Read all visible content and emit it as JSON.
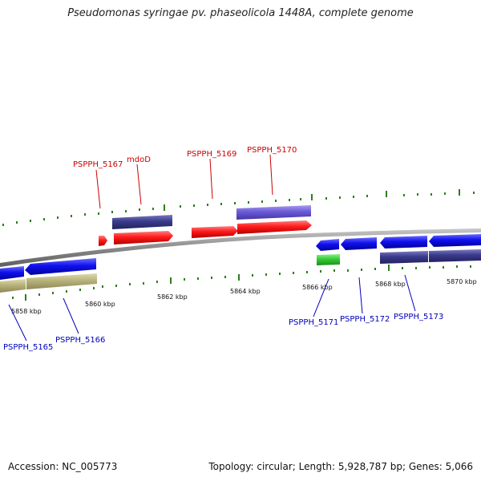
{
  "title": "Pseudomonas syringae pv. phaseolicola 1448A, complete genome",
  "footer": {
    "accession": "Accession: NC_005773",
    "topology": "Topology: circular; Length: 5,928,787 bp; Genes: 5,066"
  },
  "scale_labels": [
    "5858 kbp",
    "5860 kbp",
    "5862 kbp",
    "5864 kbp",
    "5866 kbp",
    "5868 kbp",
    "5870 kbp"
  ],
  "genes_top": [
    "PSPPH_5167",
    "mdoD",
    "PSPPH_5169",
    "PSPPH_5170"
  ],
  "genes_bottom": [
    "PSPPH_5165",
    "PSPPH_5166",
    "PSPPH_5171",
    "PSPPH_5172",
    "PSPPH_5173"
  ],
  "colors": {
    "label_top": "#cc0000",
    "label_bottom": "#0000bb",
    "backbone": "#8a8a8a",
    "tick": "#2e7d1e",
    "red_feature": "#ff1a1a",
    "blue_feature": "#1010ee",
    "dark_feature": "#3a3a8c",
    "light_purple": "#6a5ad6",
    "olive_feature": "#b8b27a",
    "green_feature": "#33cc33"
  }
}
